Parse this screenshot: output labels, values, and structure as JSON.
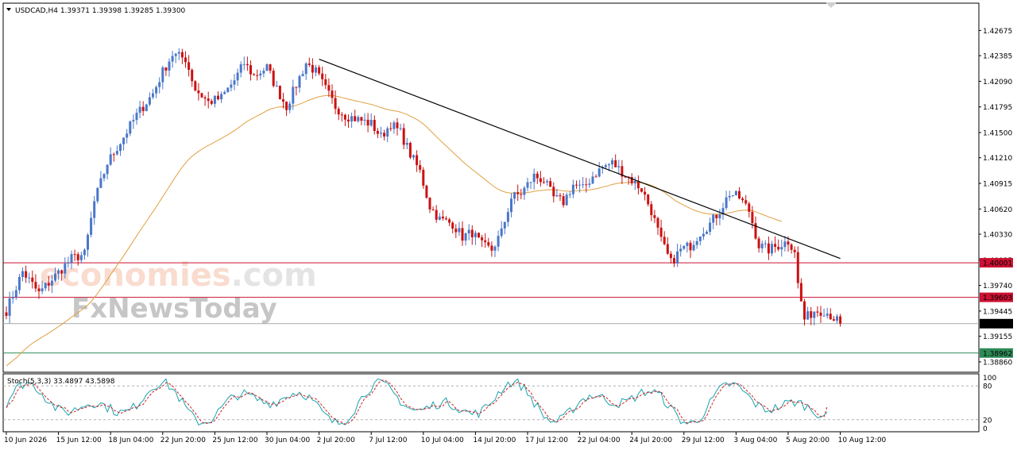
{
  "chart_title": "USDCAD,H4  1.39371 1.39398 1.39285 1.39300",
  "watermark": {
    "brand": "economies",
    "domain": ".com",
    "news": "FxNewsToday"
  },
  "colors": {
    "bull": "#4a77c9",
    "bear": "#cc1111",
    "ma": "#e0a040",
    "trend": "#000000",
    "level": "#cc1133",
    "support": "#2e8b57",
    "stoch_main": "#1aa3b0",
    "stoch_signal": "#cc2222"
  },
  "chart_data": {
    "type": "candlestick",
    "symbol": "USDCAD",
    "timeframe": "H4",
    "ohlc_readout": {
      "open": 1.39371,
      "high": 1.39398,
      "low": 1.39285,
      "close": 1.393
    },
    "ylim": [
      1.3875,
      1.4298
    ],
    "y_ticks": [
      "1.42675",
      "1.42385",
      "1.42090",
      "1.41795",
      "1.41500",
      "1.41210",
      "1.40915",
      "1.40620",
      "1.40330",
      "1.40035",
      "1.39740",
      "1.39445",
      "1.39155",
      "1.38860"
    ],
    "x_ticks": [
      "10 Jun 2026",
      "15 Jun 12:00",
      "18 Jun 04:00",
      "22 Jun 20:00",
      "25 Jun 12:00",
      "30 Jun 04:00",
      "2 Jul 20:00",
      "7 Jul 12:00",
      "10 Jul 04:00",
      "14 Jul 20:00",
      "17 Jul 12:00",
      "22 Jul 04:00",
      "24 Jul 20:00",
      "29 Jul 12:00",
      "3 Aug 04:00",
      "5 Aug 20:00",
      "10 Aug 12:00"
    ],
    "waypoints": [
      [
        0,
        1.3945
      ],
      [
        5,
        1.399
      ],
      [
        10,
        1.3965
      ],
      [
        15,
        1.3985
      ],
      [
        20,
        1.4005
      ],
      [
        24,
        1.401
      ],
      [
        27,
        1.407
      ],
      [
        31,
        1.4115
      ],
      [
        36,
        1.4145
      ],
      [
        40,
        1.417
      ],
      [
        45,
        1.4195
      ],
      [
        48,
        1.422
      ],
      [
        51,
        1.424
      ],
      [
        55,
        1.4235
      ],
      [
        58,
        1.42
      ],
      [
        62,
        1.4185
      ],
      [
        66,
        1.419
      ],
      [
        70,
        1.421
      ],
      [
        73,
        1.423
      ],
      [
        76,
        1.4215
      ],
      [
        80,
        1.4225
      ],
      [
        83,
        1.42
      ],
      [
        86,
        1.418
      ],
      [
        89,
        1.4205
      ],
      [
        92,
        1.423
      ],
      [
        95,
        1.422
      ],
      [
        98,
        1.42
      ],
      [
        101,
        1.418
      ],
      [
        104,
        1.417
      ],
      [
        108,
        1.4165
      ],
      [
        112,
        1.416
      ],
      [
        115,
        1.4145
      ],
      [
        118,
        1.416
      ],
      [
        121,
        1.415
      ],
      [
        124,
        1.4125
      ],
      [
        127,
        1.4105
      ],
      [
        130,
        1.4065
      ],
      [
        133,
        1.405
      ],
      [
        137,
        1.4045
      ],
      [
        140,
        1.403
      ],
      [
        143,
        1.4035
      ],
      [
        146,
        1.402
      ],
      [
        149,
        1.4015
      ],
      [
        152,
        1.4035
      ],
      [
        155,
        1.4075
      ],
      [
        158,
        1.408
      ],
      [
        162,
        1.41
      ],
      [
        165,
        1.4095
      ],
      [
        168,
        1.4075
      ],
      [
        171,
        1.407
      ],
      [
        174,
        1.409
      ],
      [
        177,
        1.4085
      ],
      [
        180,
        1.41
      ],
      [
        183,
        1.411
      ],
      [
        186,
        1.4115
      ],
      [
        189,
        1.4105
      ],
      [
        192,
        1.4095
      ],
      [
        195,
        1.4085
      ],
      [
        198,
        1.406
      ],
      [
        201,
        1.4025
      ],
      [
        204,
        1.4
      ],
      [
        207,
        1.4015
      ],
      [
        210,
        1.402
      ],
      [
        213,
        1.4035
      ],
      [
        216,
        1.4045
      ],
      [
        219,
        1.406
      ],
      [
        222,
        1.408
      ],
      [
        225,
        1.4075
      ],
      [
        228,
        1.406
      ],
      [
        231,
        1.402
      ],
      [
        234,
        1.4015
      ],
      [
        237,
        1.402
      ],
      [
        240,
        1.4025
      ],
      [
        242,
        1.4015
      ],
      [
        243,
        1.3975
      ],
      [
        245,
        1.3935
      ],
      [
        248,
        1.3945
      ],
      [
        251,
        1.3945
      ],
      [
        253,
        1.394
      ],
      [
        256,
        1.393
      ]
    ],
    "overlays": [
      {
        "type": "trendline",
        "from": [
          "2 Jul 20:00",
          1.42345
        ],
        "to": [
          "10 Aug 12:00",
          1.4005
        ]
      },
      {
        "type": "hline",
        "price_label": "1.40001",
        "value": 1.40001
      },
      {
        "type": "hline",
        "price_label": "1.39603",
        "value": 1.39603
      },
      {
        "type": "hline",
        "price_label": "1.39300",
        "value": 1.393,
        "note": "current price"
      },
      {
        "type": "hline",
        "price_label": "1.38962",
        "value": 1.38962
      }
    ],
    "moving_average": {
      "color": "#e0a040"
    },
    "stochastic": {
      "label": "Stoch(5,3,3) 33.4897 43.5898",
      "main": 33.4897,
      "signal": 43.5898,
      "levels": [
        80,
        20
      ],
      "axis_ticks": [
        "100",
        "80",
        "20",
        "0"
      ]
    }
  }
}
